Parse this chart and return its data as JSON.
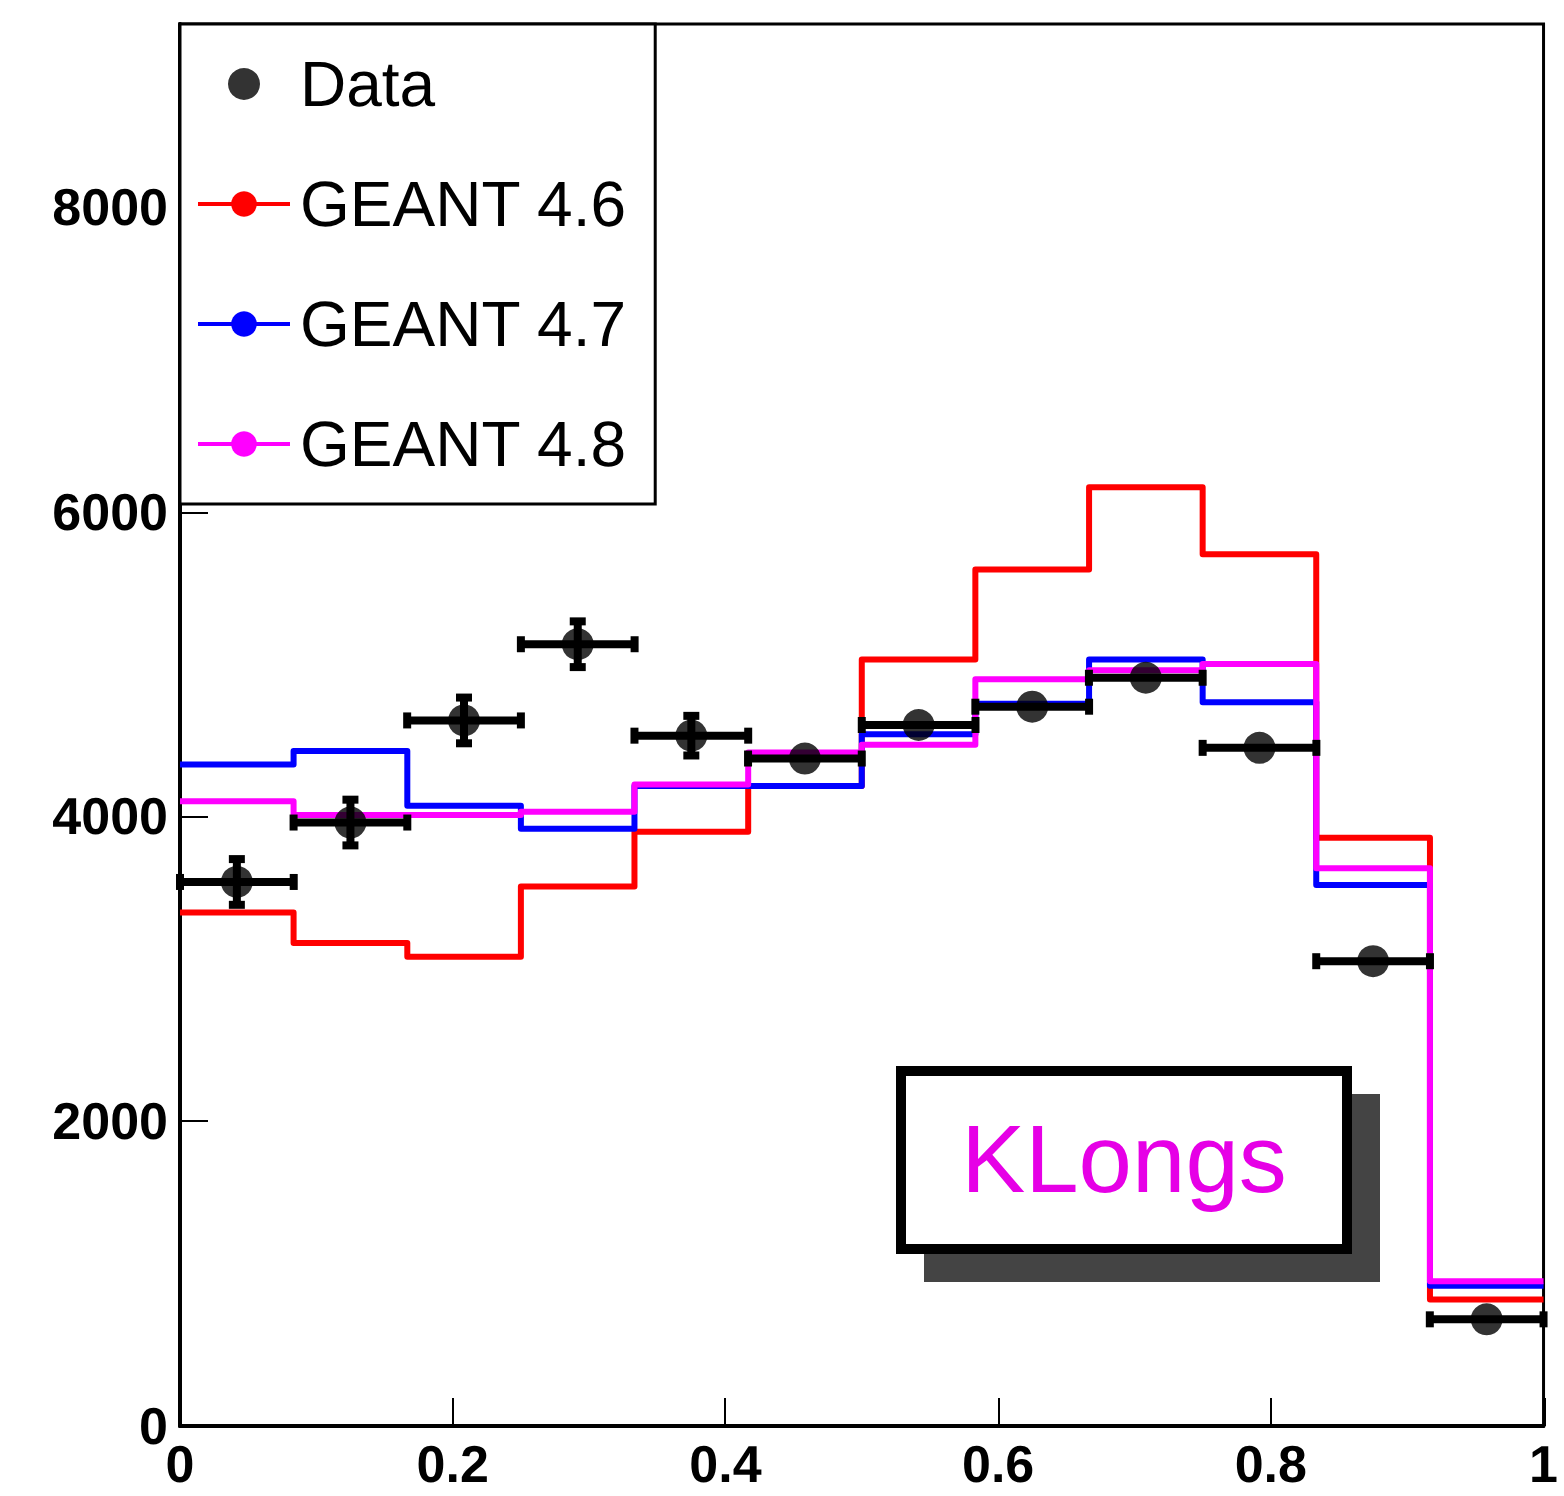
{
  "chart_data": {
    "type": "histogram",
    "legend": "top left",
    "grid": false,
    "bins": [
      0,
      0.0833,
      0.1667,
      0.25,
      0.3333,
      0.4167,
      0.5,
      0.5833,
      0.6667,
      0.75,
      0.8333,
      0.9167,
      1
    ],
    "xlim": [
      0,
      1
    ],
    "xticks": [
      0,
      0.2,
      0.4,
      0.6,
      0.8,
      1
    ],
    "ylim": [
      0,
      9200
    ],
    "yticks": [
      0,
      2000,
      4000,
      6000,
      8000
    ],
    "annotations": [
      "KLongs"
    ],
    "series": [
      {
        "name": "Data",
        "type": "scatter",
        "color": "#000000",
        "marker": "circle",
        "x": [
          0.0417,
          0.125,
          0.2083,
          0.2917,
          0.375,
          0.4583,
          0.5417,
          0.625,
          0.7083,
          0.7917,
          0.875,
          0.9583
        ],
        "values": [
          3570,
          3960,
          4630,
          5130,
          4530,
          4380,
          4600,
          4720,
          4910,
          4450,
          3050,
          700
        ],
        "errors": [
          150,
          150,
          150,
          150,
          130,
          null,
          null,
          null,
          null,
          null,
          null,
          null
        ],
        "xerrors": [
          0.0417,
          0.0417,
          0.0417,
          0.0417,
          0.0417,
          0.0417,
          0.0417,
          0.0417,
          0.0417,
          0.0417,
          0.0417,
          0.0417
        ]
      },
      {
        "name": "GEANT 4.6",
        "color": "#ff0000",
        "values": [
          3370,
          3170,
          3080,
          3540,
          3900,
          4200,
          5030,
          5620,
          6160,
          5720,
          3860,
          830
        ]
      },
      {
        "name": "GEANT 4.7",
        "color": "#0000ff",
        "values": [
          4340,
          4430,
          4070,
          3920,
          4200,
          4200,
          4540,
          4740,
          5030,
          4750,
          3550,
          920
        ]
      },
      {
        "name": "GEANT 4.8",
        "color": "#ff00ff",
        "values": [
          4100,
          4010,
          4010,
          4030,
          4210,
          4420,
          4470,
          4900,
          4960,
          5000,
          3660,
          950
        ]
      }
    ]
  }
}
